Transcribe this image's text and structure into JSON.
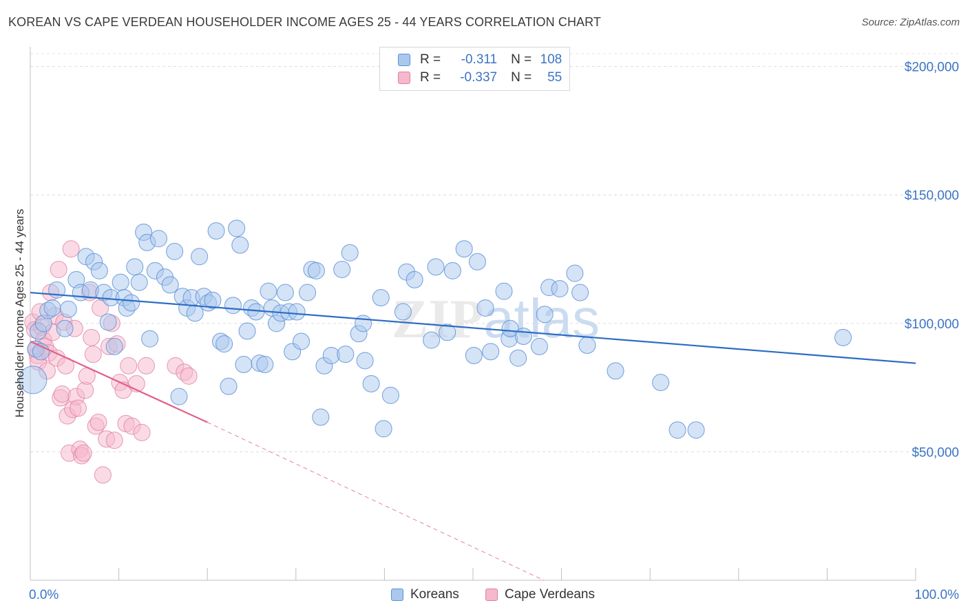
{
  "header": {
    "title": "KOREAN VS CAPE VERDEAN HOUSEHOLDER INCOME AGES 25 - 44 YEARS CORRELATION CHART",
    "source": "Source: ZipAtlas.com"
  },
  "watermark": "ZIPatlas",
  "legend": {
    "rows": [
      {
        "r_label": "R =",
        "r_value": "-0.311",
        "n_label": "N =",
        "n_value": "108"
      },
      {
        "r_label": "R =",
        "r_value": "-0.337",
        "n_label": "N =",
        "n_value": "55"
      }
    ]
  },
  "bottom_legend": {
    "items": [
      {
        "label": "Koreans"
      },
      {
        "label": "Cape Verdeans"
      }
    ]
  },
  "colors": {
    "koreans_fill": "#aac8ee",
    "koreans_stroke": "#5b8fd6",
    "koreans_line": "#2b6cc4",
    "cape_fill": "#f6b8cb",
    "cape_stroke": "#e07fa0",
    "cape_line": "#e0608a",
    "tick_text": "#3b74c4"
  },
  "chart_data": {
    "type": "scatter",
    "title": "KOREAN VS CAPE VERDEAN HOUSEHOLDER INCOME AGES 25 - 44 YEARS CORRELATION CHART",
    "xlabel": "",
    "ylabel": "Householder Income Ages 25 - 44 years",
    "xlim": [
      0,
      100
    ],
    "ylim": [
      0,
      205000
    ],
    "y_ticks": [
      {
        "value": 50000,
        "label": "$50,000"
      },
      {
        "value": 100000,
        "label": "$100,000"
      },
      {
        "value": 150000,
        "label": "$150,000"
      },
      {
        "value": 200000,
        "label": "$200,000"
      }
    ],
    "x_ticks": [
      {
        "value": 0,
        "label": "0.0%"
      },
      {
        "value": 100,
        "label": "100.0%"
      }
    ],
    "grid": true,
    "legend_position": "top-center",
    "series": [
      {
        "name": "Koreans",
        "r": -0.311,
        "n": 108,
        "trend": {
          "x": [
            0,
            100
          ],
          "y": [
            112000,
            84500
          ],
          "style": "solid"
        },
        "points": [
          [
            0.3,
            78000,
            20
          ],
          [
            0.6,
            90000,
            12
          ],
          [
            0.9,
            97000,
            12
          ],
          [
            1.2,
            89000,
            12
          ],
          [
            1.5,
            100000,
            12
          ],
          [
            2.0,
            105000,
            12
          ],
          [
            2.5,
            106000,
            12
          ],
          [
            3.0,
            113000,
            12
          ],
          [
            3.9,
            98000,
            12
          ],
          [
            4.3,
            105500,
            12
          ],
          [
            5.2,
            117000,
            12
          ],
          [
            5.7,
            112000,
            12
          ],
          [
            6.3,
            126000,
            12
          ],
          [
            6.8,
            113000,
            12
          ],
          [
            7.2,
            124000,
            12
          ],
          [
            7.8,
            120500,
            12
          ],
          [
            8.3,
            112000,
            12
          ],
          [
            8.8,
            100500,
            12
          ],
          [
            9.1,
            110000,
            12
          ],
          [
            9.5,
            91000,
            12
          ],
          [
            10.2,
            116000,
            12
          ],
          [
            10.6,
            110000,
            12
          ],
          [
            10.9,
            106000,
            12
          ],
          [
            11.4,
            108000,
            12
          ],
          [
            11.8,
            122000,
            12
          ],
          [
            12.3,
            116000,
            12
          ],
          [
            12.8,
            135500,
            12
          ],
          [
            13.2,
            131500,
            12
          ],
          [
            13.5,
            94000,
            12
          ],
          [
            14.1,
            120500,
            12
          ],
          [
            14.5,
            133000,
            12
          ],
          [
            15.2,
            118000,
            12
          ],
          [
            15.8,
            115000,
            12
          ],
          [
            16.3,
            128000,
            12
          ],
          [
            16.8,
            71500,
            12
          ],
          [
            17.2,
            110500,
            12
          ],
          [
            17.7,
            106000,
            12
          ],
          [
            18.2,
            110000,
            12
          ],
          [
            18.6,
            104000,
            12
          ],
          [
            19.1,
            126000,
            12
          ],
          [
            19.6,
            110500,
            12
          ],
          [
            20.1,
            108000,
            12
          ],
          [
            20.6,
            109000,
            12
          ],
          [
            21.0,
            136000,
            12
          ],
          [
            21.5,
            93000,
            12
          ],
          [
            21.9,
            92000,
            12
          ],
          [
            22.4,
            75500,
            12
          ],
          [
            22.9,
            107000,
            12
          ],
          [
            23.3,
            137000,
            12
          ],
          [
            23.7,
            130500,
            12
          ],
          [
            24.1,
            84000,
            12
          ],
          [
            24.5,
            97000,
            12
          ],
          [
            25.0,
            106000,
            12
          ],
          [
            25.5,
            104500,
            12
          ],
          [
            25.9,
            84500,
            12
          ],
          [
            26.5,
            84000,
            12
          ],
          [
            26.9,
            112500,
            12
          ],
          [
            27.3,
            106000,
            12
          ],
          [
            27.8,
            100000,
            12
          ],
          [
            28.3,
            104000,
            12
          ],
          [
            28.8,
            112000,
            12
          ],
          [
            29.2,
            104500,
            12
          ],
          [
            29.6,
            89000,
            12
          ],
          [
            30.1,
            104500,
            12
          ],
          [
            30.6,
            93000,
            12
          ],
          [
            31.3,
            112000,
            12
          ],
          [
            31.8,
            121000,
            12
          ],
          [
            32.3,
            120500,
            12
          ],
          [
            32.8,
            63500,
            12
          ],
          [
            33.2,
            83500,
            12
          ],
          [
            34.0,
            87500,
            12
          ],
          [
            35.2,
            121000,
            12
          ],
          [
            35.6,
            88000,
            12
          ],
          [
            36.1,
            127500,
            12
          ],
          [
            37.1,
            96000,
            12
          ],
          [
            37.6,
            100000,
            12
          ],
          [
            37.8,
            85500,
            12
          ],
          [
            38.5,
            76500,
            12
          ],
          [
            39.6,
            110000,
            12
          ],
          [
            39.9,
            59000,
            12
          ],
          [
            40.7,
            72000,
            12
          ],
          [
            42.1,
            104500,
            12
          ],
          [
            42.5,
            120000,
            12
          ],
          [
            43.4,
            117000,
            12
          ],
          [
            45.3,
            93500,
            12
          ],
          [
            45.8,
            122000,
            12
          ],
          [
            47.1,
            96500,
            12
          ],
          [
            47.7,
            120500,
            12
          ],
          [
            49.0,
            129000,
            12
          ],
          [
            50.1,
            87500,
            12
          ],
          [
            50.5,
            124000,
            12
          ],
          [
            51.4,
            106000,
            12
          ],
          [
            52.0,
            89000,
            12
          ],
          [
            53.5,
            112500,
            12
          ],
          [
            54.1,
            94000,
            12
          ],
          [
            54.2,
            98000,
            12
          ],
          [
            55.1,
            86500,
            12
          ],
          [
            55.7,
            95000,
            12
          ],
          [
            57.5,
            91000,
            12
          ],
          [
            58.1,
            103500,
            12
          ],
          [
            58.6,
            114000,
            12
          ],
          [
            59.8,
            113500,
            12
          ],
          [
            61.5,
            119500,
            12
          ],
          [
            62.1,
            112000,
            12
          ],
          [
            62.9,
            91500,
            12
          ],
          [
            66.1,
            81500,
            12
          ],
          [
            71.2,
            77000,
            12
          ],
          [
            73.1,
            58500,
            12
          ],
          [
            75.2,
            58500,
            12
          ],
          [
            91.8,
            94500,
            12
          ]
        ]
      },
      {
        "name": "Cape Verdeans",
        "r": -0.337,
        "n": 55,
        "trend": {
          "x": [
            0,
            20
          ],
          "y": [
            93000,
            61500
          ],
          "style": "solid"
        },
        "trend_extension": {
          "x": [
            20,
            58
          ],
          "y": [
            61500,
            0
          ],
          "style": "dashed"
        },
        "points": [
          [
            0.3,
            100500,
            12
          ],
          [
            0.5,
            97500,
            12
          ],
          [
            0.7,
            90000,
            12
          ],
          [
            0.8,
            87500,
            12
          ],
          [
            0.9,
            85000,
            12
          ],
          [
            1.1,
            104500,
            12
          ],
          [
            1.3,
            98500,
            12
          ],
          [
            1.5,
            93500,
            12
          ],
          [
            1.7,
            91000,
            12
          ],
          [
            1.9,
            81500,
            12
          ],
          [
            2.1,
            88500,
            12
          ],
          [
            2.3,
            112000,
            12
          ],
          [
            2.5,
            96500,
            12
          ],
          [
            2.8,
            103000,
            12
          ],
          [
            3.0,
            86500,
            12
          ],
          [
            3.2,
            121000,
            12
          ],
          [
            3.4,
            71000,
            12
          ],
          [
            3.6,
            72500,
            12
          ],
          [
            3.8,
            100500,
            12
          ],
          [
            4.0,
            83500,
            12
          ],
          [
            4.2,
            64000,
            12
          ],
          [
            4.4,
            49500,
            12
          ],
          [
            4.6,
            129000,
            12
          ],
          [
            4.8,
            66500,
            12
          ],
          [
            5.0,
            98000,
            12
          ],
          [
            5.2,
            71500,
            12
          ],
          [
            5.4,
            67000,
            12
          ],
          [
            5.6,
            51000,
            12
          ],
          [
            5.8,
            48500,
            12
          ],
          [
            6.0,
            49500,
            12
          ],
          [
            6.2,
            74000,
            12
          ],
          [
            6.4,
            79500,
            12
          ],
          [
            6.7,
            112000,
            12
          ],
          [
            6.9,
            94500,
            12
          ],
          [
            7.1,
            88000,
            12
          ],
          [
            7.4,
            60000,
            12
          ],
          [
            7.7,
            61500,
            12
          ],
          [
            7.9,
            106000,
            12
          ],
          [
            8.2,
            41000,
            12
          ],
          [
            8.6,
            55000,
            12
          ],
          [
            8.9,
            91000,
            12
          ],
          [
            9.2,
            100000,
            12
          ],
          [
            9.5,
            54500,
            12
          ],
          [
            9.8,
            92000,
            12
          ],
          [
            10.1,
            77000,
            12
          ],
          [
            10.5,
            74000,
            12
          ],
          [
            10.8,
            61000,
            12
          ],
          [
            11.1,
            83500,
            12
          ],
          [
            11.5,
            60000,
            12
          ],
          [
            12.0,
            76500,
            12
          ],
          [
            12.6,
            57500,
            12
          ],
          [
            13.1,
            83500,
            12
          ],
          [
            16.4,
            83500,
            12
          ],
          [
            17.4,
            81000,
            12
          ],
          [
            17.9,
            79500,
            12
          ]
        ]
      }
    ]
  }
}
